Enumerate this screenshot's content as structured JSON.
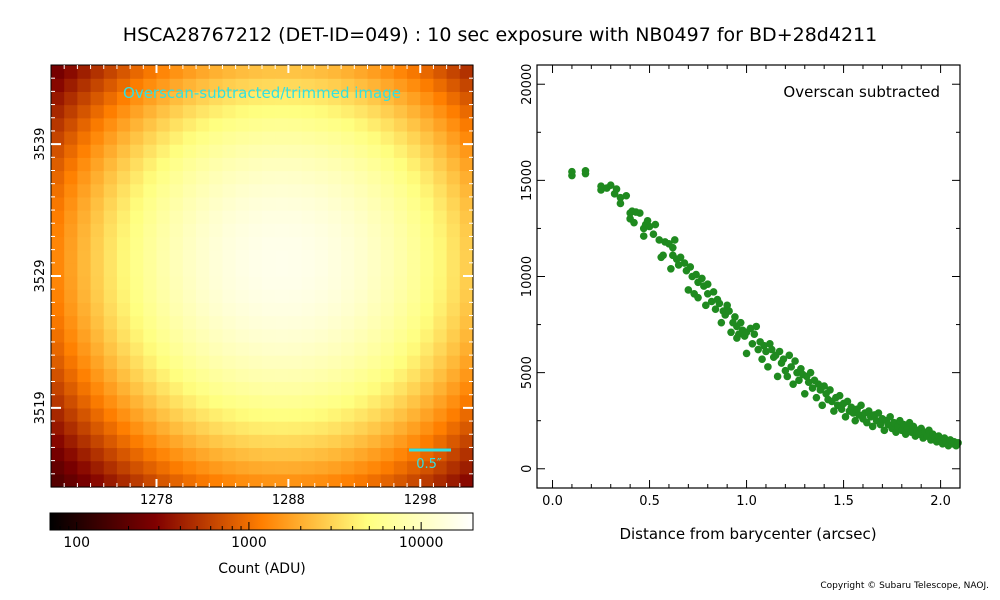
{
  "title": "HSCA28767212 (DET-ID=049) :  10 sec exposure with NB0497 for BD+28d4211",
  "copyright": "Copyright © Subaru Telescope, NAOJ.",
  "chart_data": [
    {
      "type": "heatmap",
      "annotation": "Overscan-subtracted/trimmed image",
      "scale_bar_label": "0.5″",
      "x_ticks": [
        "1278",
        "1288",
        "1298"
      ],
      "y_ticks": [
        "3539",
        "3529",
        "3519"
      ],
      "xlim": [
        1270,
        1302
      ],
      "ylim": [
        3513,
        3545
      ],
      "center": [
        1287.5,
        3530
      ],
      "colormap": "afmhot",
      "color_scale": "log",
      "colorbar": {
        "label": "Count (ADU)",
        "range": [
          70,
          20000
        ],
        "tick_labels": [
          "100",
          "1000",
          "10000"
        ],
        "tick_values": [
          100,
          1000,
          10000
        ]
      }
    },
    {
      "type": "scatter",
      "annotation": "Overscan subtracted",
      "xlabel": "Distance from barycenter (arcsec)",
      "ylabel": "",
      "xlim": [
        -0.08,
        2.1
      ],
      "ylim": [
        -1000,
        21000
      ],
      "x_ticks": [
        0.0,
        0.5,
        1.0,
        1.5,
        2.0
      ],
      "x_tick_labels": [
        "0.0",
        "0.5",
        "1.0",
        "1.5",
        "2.0"
      ],
      "y_ticks": [
        0,
        5000,
        10000,
        15000,
        20000
      ],
      "y_tick_labels": [
        "0",
        "5000",
        "10000",
        "15000",
        "20000"
      ],
      "color": "#1f8a1f",
      "points": [
        [
          0.1,
          15250
        ],
        [
          0.1,
          15450
        ],
        [
          0.17,
          15350
        ],
        [
          0.17,
          15500
        ],
        [
          0.25,
          14500
        ],
        [
          0.25,
          14700
        ],
        [
          0.28,
          14600
        ],
        [
          0.3,
          14750
        ],
        [
          0.32,
          14300
        ],
        [
          0.33,
          14550
        ],
        [
          0.35,
          14100
        ],
        [
          0.35,
          13800
        ],
        [
          0.38,
          14200
        ],
        [
          0.4,
          13300
        ],
        [
          0.4,
          13000
        ],
        [
          0.41,
          13400
        ],
        [
          0.42,
          12800
        ],
        [
          0.43,
          13350
        ],
        [
          0.45,
          13300
        ],
        [
          0.47,
          12500
        ],
        [
          0.47,
          12100
        ],
        [
          0.48,
          12700
        ],
        [
          0.49,
          12900
        ],
        [
          0.5,
          12600
        ],
        [
          0.52,
          12200
        ],
        [
          0.53,
          12700
        ],
        [
          0.55,
          11900
        ],
        [
          0.56,
          11000
        ],
        [
          0.57,
          11100
        ],
        [
          0.58,
          11800
        ],
        [
          0.6,
          11700
        ],
        [
          0.61,
          10400
        ],
        [
          0.62,
          11500
        ],
        [
          0.62,
          11100
        ],
        [
          0.63,
          11900
        ],
        [
          0.64,
          10900
        ],
        [
          0.65,
          10600
        ],
        [
          0.66,
          11000
        ],
        [
          0.68,
          10700
        ],
        [
          0.69,
          10300
        ],
        [
          0.7,
          9300
        ],
        [
          0.71,
          10500
        ],
        [
          0.72,
          10000
        ],
        [
          0.73,
          9100
        ],
        [
          0.74,
          10100
        ],
        [
          0.75,
          9700
        ],
        [
          0.75,
          8900
        ],
        [
          0.77,
          9900
        ],
        [
          0.78,
          9500
        ],
        [
          0.79,
          8500
        ],
        [
          0.8,
          9600
        ],
        [
          0.8,
          9100
        ],
        [
          0.82,
          8700
        ],
        [
          0.83,
          9200
        ],
        [
          0.84,
          8300
        ],
        [
          0.85,
          8800
        ],
        [
          0.86,
          8600
        ],
        [
          0.87,
          7600
        ],
        [
          0.88,
          8200
        ],
        [
          0.89,
          8000
        ],
        [
          0.9,
          8500
        ],
        [
          0.91,
          8200
        ],
        [
          0.92,
          7100
        ],
        [
          0.93,
          7600
        ],
        [
          0.94,
          7900
        ],
        [
          0.95,
          7400
        ],
        [
          0.95,
          6800
        ],
        [
          0.96,
          7000
        ],
        [
          0.97,
          7600
        ],
        [
          0.98,
          7200
        ],
        [
          0.99,
          6900
        ],
        [
          1.0,
          6000
        ],
        [
          1.0,
          7100
        ],
        [
          1.02,
          7300
        ],
        [
          1.03,
          6500
        ],
        [
          1.04,
          7000
        ],
        [
          1.05,
          7400
        ],
        [
          1.06,
          6200
        ],
        [
          1.07,
          6600
        ],
        [
          1.08,
          5700
        ],
        [
          1.09,
          6400
        ],
        [
          1.1,
          6100
        ],
        [
          1.11,
          5300
        ],
        [
          1.12,
          6500
        ],
        [
          1.13,
          6200
        ],
        [
          1.14,
          5800
        ],
        [
          1.15,
          5900
        ],
        [
          1.16,
          4800
        ],
        [
          1.17,
          6100
        ],
        [
          1.18,
          5500
        ],
        [
          1.19,
          5700
        ],
        [
          1.2,
          5100
        ],
        [
          1.21,
          4800
        ],
        [
          1.22,
          5900
        ],
        [
          1.23,
          5300
        ],
        [
          1.24,
          4400
        ],
        [
          1.25,
          5600
        ],
        [
          1.26,
          5000
        ],
        [
          1.27,
          4600
        ],
        [
          1.28,
          5200
        ],
        [
          1.29,
          4900
        ],
        [
          1.3,
          3900
        ],
        [
          1.31,
          4800
        ],
        [
          1.32,
          4500
        ],
        [
          1.33,
          5000
        ],
        [
          1.34,
          4200
        ],
        [
          1.35,
          4600
        ],
        [
          1.36,
          3700
        ],
        [
          1.37,
          4400
        ],
        [
          1.38,
          4100
        ],
        [
          1.39,
          3300
        ],
        [
          1.4,
          4300
        ],
        [
          1.41,
          3900
        ],
        [
          1.42,
          3600
        ],
        [
          1.43,
          4100
        ],
        [
          1.44,
          3500
        ],
        [
          1.45,
          3000
        ],
        [
          1.46,
          3700
        ],
        [
          1.47,
          3300
        ],
        [
          1.48,
          3800
        ],
        [
          1.49,
          3100
        ],
        [
          1.5,
          3400
        ],
        [
          1.51,
          2700
        ],
        [
          1.52,
          3500
        ],
        [
          1.53,
          3000
        ],
        [
          1.54,
          3200
        ],
        [
          1.55,
          2900
        ],
        [
          1.56,
          2500
        ],
        [
          1.57,
          3100
        ],
        [
          1.58,
          2800
        ],
        [
          1.59,
          3300
        ],
        [
          1.6,
          2600
        ],
        [
          1.61,
          2900
        ],
        [
          1.62,
          2400
        ],
        [
          1.63,
          3000
        ],
        [
          1.64,
          2700
        ],
        [
          1.65,
          2200
        ],
        [
          1.66,
          2800
        ],
        [
          1.67,
          2500
        ],
        [
          1.68,
          2900
        ],
        [
          1.69,
          2300
        ],
        [
          1.7,
          2600
        ],
        [
          1.71,
          2000
        ],
        [
          1.72,
          2500
        ],
        [
          1.73,
          2300
        ],
        [
          1.74,
          2700
        ],
        [
          1.75,
          2100
        ],
        [
          1.76,
          2400
        ],
        [
          1.77,
          1900
        ],
        [
          1.78,
          2200
        ],
        [
          1.79,
          2500
        ],
        [
          1.8,
          2000
        ],
        [
          1.81,
          2300
        ],
        [
          1.82,
          1800
        ],
        [
          1.83,
          2100
        ],
        [
          1.84,
          2400
        ],
        [
          1.85,
          1900
        ],
        [
          1.86,
          2200
        ],
        [
          1.87,
          1700
        ],
        [
          1.88,
          2000
        ],
        [
          1.89,
          1800
        ],
        [
          1.9,
          2100
        ],
        [
          1.91,
          1600
        ],
        [
          1.92,
          1900
        ],
        [
          1.93,
          1700
        ],
        [
          1.94,
          2000
        ],
        [
          1.95,
          1500
        ],
        [
          1.96,
          1800
        ],
        [
          1.97,
          1600
        ],
        [
          1.98,
          1400
        ],
        [
          1.99,
          1700
        ],
        [
          2.0,
          1500
        ],
        [
          2.01,
          1300
        ],
        [
          2.02,
          1600
        ],
        [
          2.03,
          1400
        ],
        [
          2.04,
          1200
        ],
        [
          2.05,
          1500
        ],
        [
          2.06,
          1300
        ],
        [
          2.07,
          1400
        ],
        [
          2.08,
          1200
        ],
        [
          2.09,
          1350
        ]
      ]
    }
  ]
}
